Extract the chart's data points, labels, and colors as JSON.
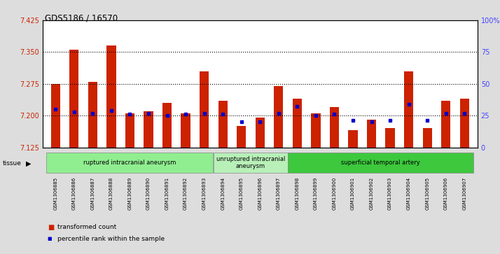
{
  "title": "GDS5186 / 16570",
  "samples": [
    "GSM1306885",
    "GSM1306886",
    "GSM1306887",
    "GSM1306888",
    "GSM1306889",
    "GSM1306890",
    "GSM1306891",
    "GSM1306892",
    "GSM1306893",
    "GSM1306894",
    "GSM1306895",
    "GSM1306896",
    "GSM1306897",
    "GSM1306898",
    "GSM1306899",
    "GSM1306900",
    "GSM1306901",
    "GSM1306902",
    "GSM1306903",
    "GSM1306904",
    "GSM1306905",
    "GSM1306906",
    "GSM1306907"
  ],
  "red_values": [
    7.275,
    7.355,
    7.28,
    7.365,
    7.205,
    7.21,
    7.23,
    7.205,
    7.305,
    7.235,
    7.175,
    7.195,
    7.27,
    7.24,
    7.205,
    7.22,
    7.165,
    7.19,
    7.17,
    7.305,
    7.17,
    7.235,
    7.24
  ],
  "blue_values": [
    30,
    28,
    27,
    29,
    26,
    27,
    25,
    26,
    27,
    26,
    20,
    20,
    27,
    32,
    25,
    26,
    21,
    20,
    21,
    34,
    21,
    27,
    27
  ],
  "ylim_left": [
    7.125,
    7.425
  ],
  "ylim_right": [
    0,
    100
  ],
  "yticks_left": [
    7.125,
    7.2,
    7.275,
    7.35,
    7.425
  ],
  "yticks_right": [
    0,
    25,
    50,
    75,
    100
  ],
  "ytick_labels_right": [
    "0",
    "25",
    "50",
    "75",
    "100%"
  ],
  "hlines": [
    7.2,
    7.275,
    7.35
  ],
  "groups": [
    {
      "label": "ruptured intracranial aneurysm",
      "start": 0,
      "end": 9,
      "color": "#90EE90"
    },
    {
      "label": "unruptured intracranial\naneurysm",
      "start": 9,
      "end": 13,
      "color": "#b8f0b8"
    },
    {
      "label": "superficial temporal artery",
      "start": 13,
      "end": 23,
      "color": "#3dc83d"
    }
  ],
  "bar_color": "#cc2200",
  "dot_color": "#0000cc",
  "bar_width": 0.5,
  "background_color": "#dddddd",
  "plot_bg_color": "#ffffff"
}
